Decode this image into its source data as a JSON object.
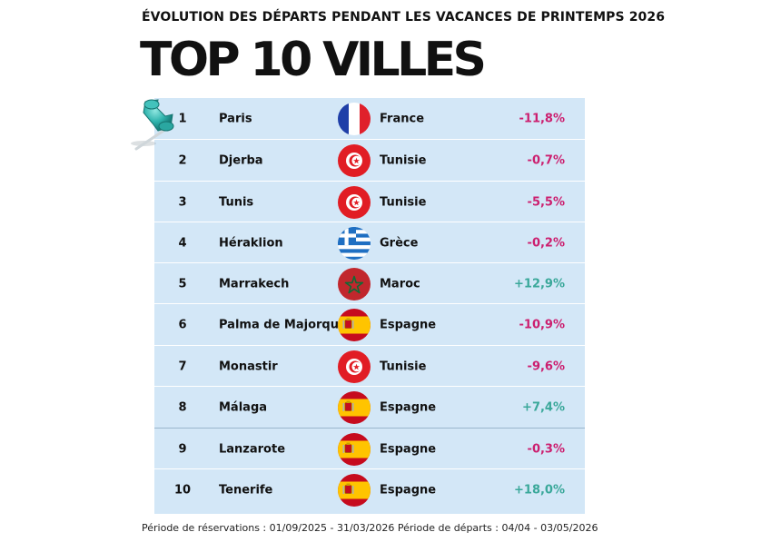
{
  "header": {
    "subtitle": "ÉVOLUTION DES DÉPARTS PENDANT LES VACANCES DE PRINTEMPS 2026",
    "title": "TOP 10 VILLES"
  },
  "colors": {
    "table_background": "#d3e7f7",
    "negative": "#cc1f6f",
    "positive": "#3aa89a"
  },
  "chart_data": {
    "type": "table",
    "title": "TOP 10 VILLES",
    "subtitle": "ÉVOLUTION DES DÉPARTS PENDANT LES VACANCES DE PRINTEMPS 2026",
    "rows": [
      {
        "rank": "1",
        "city": "Paris",
        "flag": "france-flag-icon",
        "country": "France",
        "change": "-11,8%",
        "change_value": -11.8
      },
      {
        "rank": "2",
        "city": "Djerba",
        "flag": "tunisia-flag-icon",
        "country": "Tunisie",
        "change": "-0,7%",
        "change_value": -0.7
      },
      {
        "rank": "3",
        "city": "Tunis",
        "flag": "tunisia-flag-icon",
        "country": "Tunisie",
        "change": "-5,5%",
        "change_value": -5.5
      },
      {
        "rank": "4",
        "city": "Héraklion",
        "flag": "greece-flag-icon",
        "country": "Grèce",
        "change": "-0,2%",
        "change_value": -0.2
      },
      {
        "rank": "5",
        "city": "Marrakech",
        "flag": "morocco-flag-icon",
        "country": "Maroc",
        "change": "+12,9%",
        "change_value": 12.9
      },
      {
        "rank": "6",
        "city": "Palma de Majorque",
        "flag": "spain-flag-icon",
        "country": "Espagne",
        "change": "-10,9%",
        "change_value": -10.9
      },
      {
        "rank": "7",
        "city": "Monastir",
        "flag": "tunisia-flag-icon",
        "country": "Tunisie",
        "change": "-9,6%",
        "change_value": -9.6
      },
      {
        "rank": "8",
        "city": "Málaga",
        "flag": "spain-flag-icon",
        "country": "Espagne",
        "change": "+7,4%",
        "change_value": 7.4
      },
      {
        "rank": "9",
        "city": "Lanzarote",
        "flag": "spain-flag-icon",
        "country": "Espagne",
        "change": "-0,3%",
        "change_value": -0.3
      },
      {
        "rank": "10",
        "city": "Tenerife",
        "flag": "spain-flag-icon",
        "country": "Espagne",
        "change": "+18,0%",
        "change_value": 18.0
      }
    ]
  },
  "footnote": "Période de réservations : 01/09/2025 - 31/03/2026 Période de départs : 04/04 - 03/05/2026"
}
